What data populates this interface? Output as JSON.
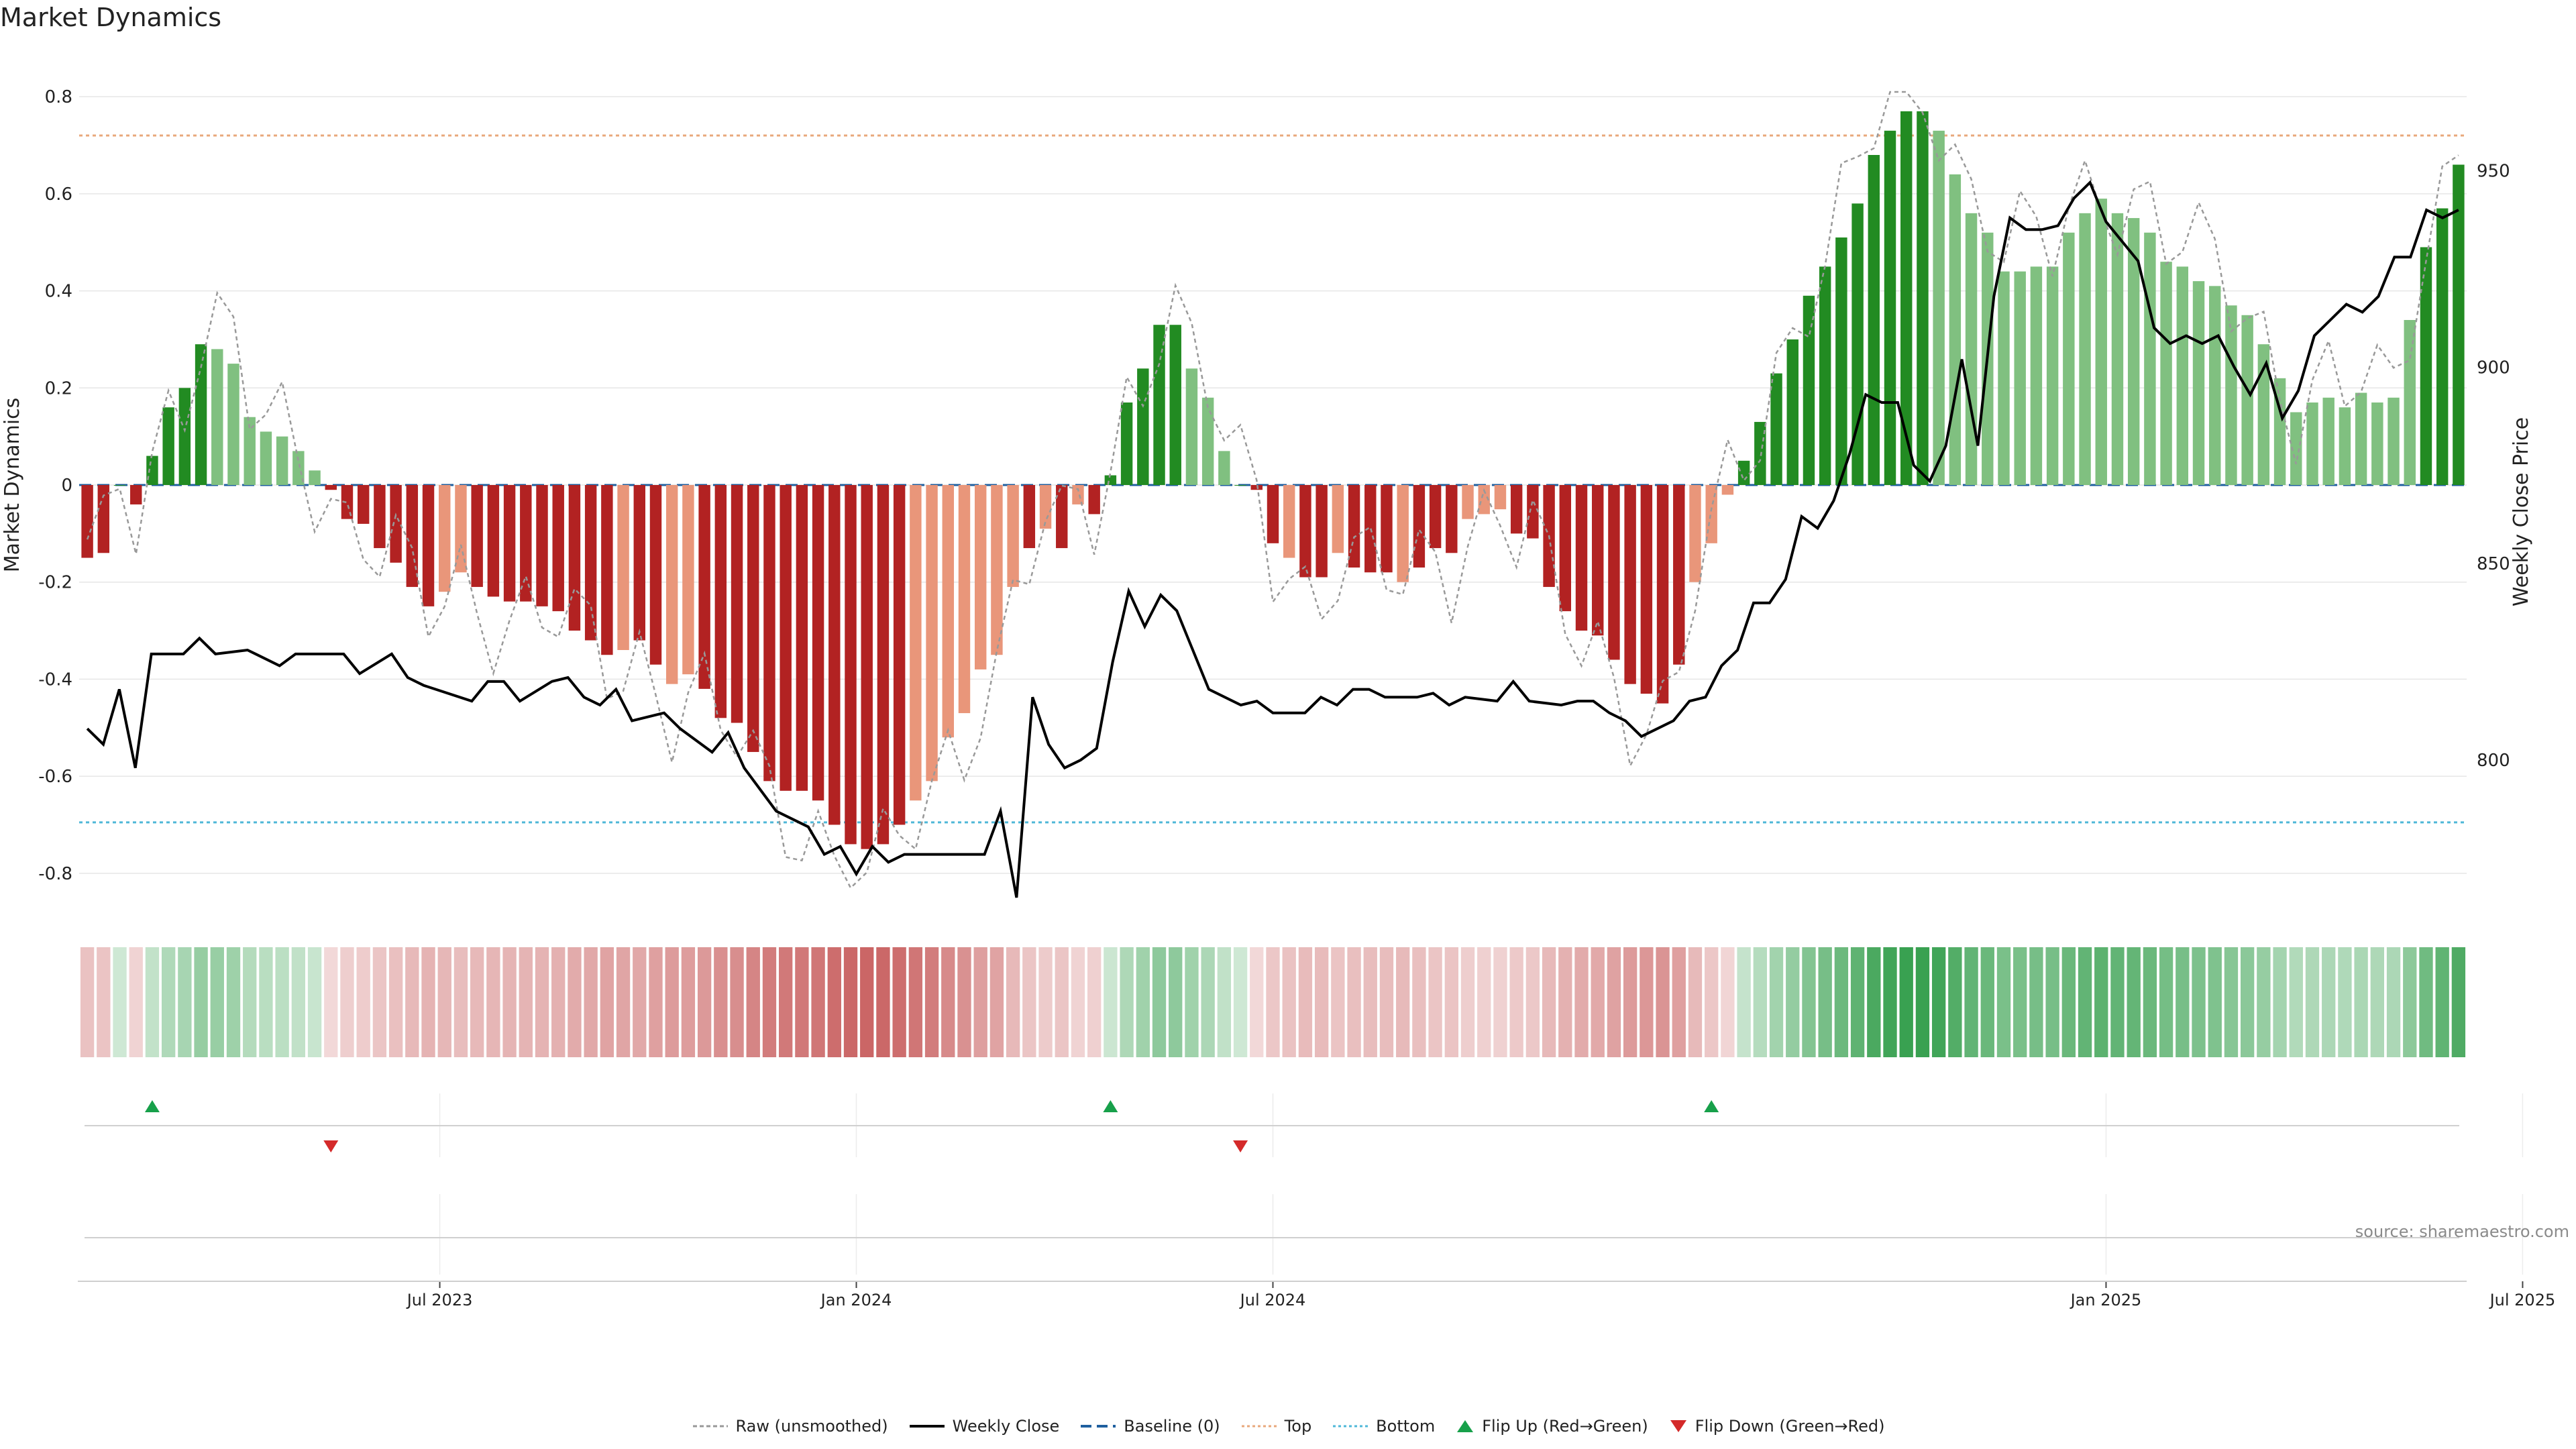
{
  "title": "Market Dynamics",
  "source": "source: sharemaestro.com",
  "legend": {
    "raw": "Raw (unsmoothed)",
    "close": "Weekly Close",
    "baseline": "Baseline (0)",
    "top": "Top",
    "bottom": "Bottom",
    "flip_up": "Flip Up (Red→Green)",
    "flip_down": "Flip Down (Green→Red)"
  },
  "colors": {
    "strong_green": "#228B22",
    "light_green": "#80C080",
    "strong_red": "#B22222",
    "light_red": "#E9967A",
    "raw_line": "#999999",
    "close_line": "#000000",
    "baseline": "#1f5f9f",
    "top_line": "#E8A87C",
    "bottom_line": "#4FB8D8",
    "flip_up": "#17A04A",
    "flip_down": "#D42A2A"
  },
  "chart_data": {
    "type": "bar",
    "title": "Market Dynamics",
    "ylabel": "Market Dynamics",
    "y2label": "Weekly Close Price",
    "ylim": [
      -0.85,
      0.85
    ],
    "y2lim": [
      765,
      975
    ],
    "yticks": [
      "-0.8",
      "-0.6",
      "-0.4",
      "-0.2",
      "0",
      "0.2",
      "0.4",
      "0.6",
      "0.8"
    ],
    "y2ticks": [
      "800",
      "850",
      "900",
      "950"
    ],
    "xlabels": [
      "Jul 2023",
      "Jan 2024",
      "Jul 2024",
      "Jan 2025",
      "Jul 2025"
    ],
    "xlabel_weeks": [
      22,
      48,
      74,
      126,
      152
    ],
    "top_level": 0.72,
    "bottom_level": -0.695,
    "baseline": 0,
    "series": [
      {
        "name": "Market Dynamics",
        "values": [
          -0.15,
          -0.14,
          0,
          -0.04,
          0.06,
          0.16,
          0.2,
          0.29,
          0.28,
          0.25,
          0.14,
          0.11,
          0.1,
          0.07,
          0.03,
          -0.01,
          -0.07,
          -0.08,
          -0.13,
          -0.16,
          -0.21,
          -0.25,
          -0.22,
          -0.18,
          -0.21,
          -0.23,
          -0.24,
          -0.24,
          -0.25,
          -0.26,
          -0.3,
          -0.32,
          -0.35,
          -0.34,
          -0.32,
          -0.37,
          -0.41,
          -0.39,
          -0.42,
          -0.48,
          -0.49,
          -0.55,
          -0.61,
          -0.63,
          -0.63,
          -0.65,
          -0.7,
          -0.74,
          -0.75,
          -0.74,
          -0.7,
          -0.65,
          -0.61,
          -0.52,
          -0.47,
          -0.38,
          -0.35,
          -0.21,
          -0.13,
          -0.09,
          -0.13,
          -0.04,
          -0.06,
          0.02,
          0.17,
          0.24,
          0.33,
          0.33,
          0.24,
          0.18,
          0.07,
          0.0,
          -0.01,
          -0.12,
          -0.15,
          -0.19,
          -0.19,
          -0.14,
          -0.17,
          -0.18,
          -0.18,
          -0.2,
          -0.17,
          -0.13,
          -0.14,
          -0.07,
          -0.06,
          -0.05,
          -0.1,
          -0.11,
          -0.21,
          -0.26,
          -0.3,
          -0.31,
          -0.36,
          -0.41,
          -0.43,
          -0.45,
          -0.37,
          -0.2,
          -0.12,
          -0.02,
          0.05,
          0.13,
          0.23,
          0.3,
          0.39,
          0.45,
          0.51,
          0.58,
          0.68,
          0.73,
          0.77,
          0.77,
          0.73,
          0.64,
          0.56,
          0.52,
          0.44,
          0.44,
          0.45,
          0.45,
          0.52,
          0.56,
          0.59,
          0.56,
          0.55,
          0.52,
          0.46,
          0.45,
          0.42,
          0.41,
          0.37,
          0.35,
          0.29,
          0.22,
          0.15,
          0.17,
          0.18,
          0.16,
          0.19,
          0.17,
          0.18,
          0.34,
          0.49,
          0.57,
          0.66
        ],
        "state": "SSSSGGGGLLLLLLLSSSSSSSLLSSSSSSSSSLSSLLSSSSSSSSSSSSSLLLLLLLSLSLSGGGGGLLLSSSLSSLSSSLSSSLLLSSSSSSSSSSSLLLGGGGGGGGGGGGLLLLLLLLLLLLLLLLLLLLLLLLLLLLLLGGGGGGG"
      }
    ],
    "legend": [
      "Raw (unsmoothed)",
      "Weekly Close",
      "Baseline (0)",
      "Top",
      "Bottom",
      "Flip Up (Red→Green)",
      "Flip Down (Green→Red)"
    ],
    "flip_up_weeks": [
      4,
      63,
      100
    ],
    "flip_down_weeks": [
      15,
      71
    ]
  }
}
